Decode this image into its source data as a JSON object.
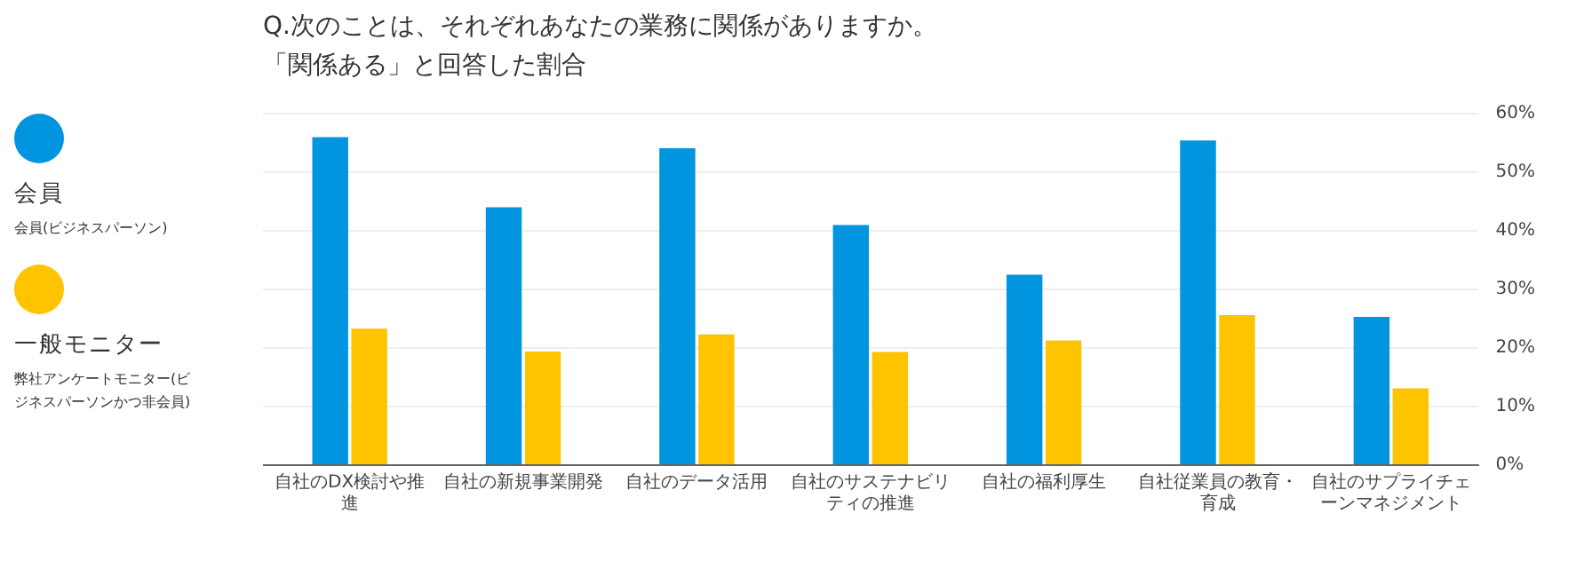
{
  "chart_data": {
    "type": "bar",
    "title": "Q.次のことは、それぞれあなたの業務に関係がありますか。",
    "subtitle": "「関係ある」と回答した割合",
    "categories": [
      "自社のDX検討や推進",
      "自社の新規事業開発",
      "自社のデータ活用",
      "自社のサステナビリティの推進",
      "自社の福利厚生",
      "自社従業員の教育・育成",
      "自社のサプライチェーンマネジメント"
    ],
    "series": [
      {
        "name": "会員",
        "color": "#0095de",
        "values": [
          56.0,
          44.0,
          54.1,
          41.0,
          32.5,
          55.4,
          25.3
        ]
      },
      {
        "name": "一般モニター",
        "color": "#ffc300",
        "values": [
          23.3,
          19.4,
          22.3,
          19.3,
          21.3,
          25.6,
          13.1
        ]
      }
    ],
    "annotations": [
      "会員(ビジネスパーソン)",
      "弊社アンケートモニター(ビジネスパーソンかつ非会員)"
    ],
    "ylim": [
      0,
      60
    ],
    "yticks": [
      {
        "value": 0,
        "label": "0%"
      },
      {
        "value": 10,
        "label": "10%"
      },
      {
        "value": 20,
        "label": "20%"
      },
      {
        "value": 30,
        "label": "30%"
      },
      {
        "value": 40,
        "label": "40%"
      },
      {
        "value": 50,
        "label": "50%"
      },
      {
        "value": 60,
        "label": "60%"
      }
    ],
    "grid": "y",
    "legend": "left"
  }
}
